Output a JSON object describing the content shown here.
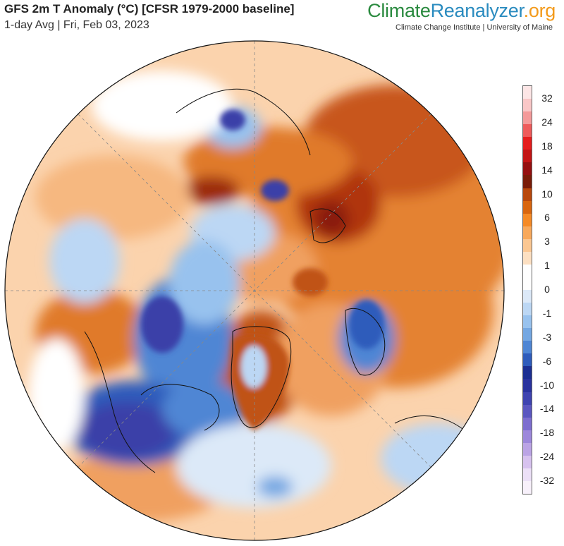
{
  "header": {
    "title": "GFS 2m T Anomaly (°C) [CFSR 1979-2000 baseline]",
    "subtitle": "1-day Avg | Fri, Feb 03, 2023"
  },
  "branding": {
    "logo_part1": "Climate",
    "logo_part2": "Reanalyzer",
    "logo_part3": ".org",
    "tagline": "Climate Change Institute | University of Maine"
  },
  "colorbar": {
    "labels": [
      "32",
      "24",
      "18",
      "14",
      "10",
      "6",
      "3",
      "1",
      "0",
      "-1",
      "-3",
      "-6",
      "-10",
      "-14",
      "-18",
      "-24",
      "-32"
    ],
    "colors": [
      "#fde6e6",
      "#f9c7c7",
      "#f49a9a",
      "#ee5b5b",
      "#e51d1d",
      "#c31515",
      "#951010",
      "#7a1c08",
      "#b8480c",
      "#d9660f",
      "#f58a26",
      "#f8a95c",
      "#fbc792",
      "#fde0c2",
      "#ffffff",
      "#ffffff",
      "#dce9f8",
      "#bcd7f4",
      "#98c2ee",
      "#74a7e2",
      "#4f86d4",
      "#2f5cbb",
      "#1c2f92",
      "#2a339e",
      "#3f44b0",
      "#5b57c0",
      "#7d6ecf",
      "#9d88db",
      "#bba4e5",
      "#d7c2ef",
      "#ece0f7",
      "#f8f1fb"
    ]
  },
  "map": {
    "projection": "orthographic-north-polar",
    "colors": {
      "warm_strong": "#8a1f0a",
      "warm": "#d9660f",
      "warm_light": "#f8a95c",
      "neutral": "#ffffff",
      "cold_light": "#bcd7f4",
      "cold": "#4f86d4",
      "cold_strong": "#1c2f92"
    }
  }
}
